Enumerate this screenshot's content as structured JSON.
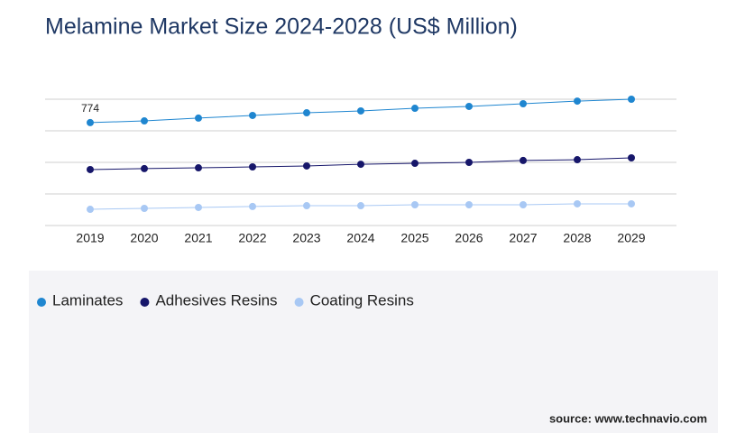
{
  "chart_data": {
    "type": "line",
    "title": "Melamine Market Size 2024-2028 (US$ Million)",
    "x": [
      2019,
      2020,
      2021,
      2022,
      2023,
      2024,
      2025,
      2026,
      2027,
      2028,
      2029
    ],
    "series": [
      {
        "name": "Laminates",
        "color": "#1f86d0",
        "values": [
          774,
          787,
          808,
          828,
          848,
          862,
          882,
          896,
          916,
          936,
          950
        ]
      },
      {
        "name": "Adhesives Resins",
        "color": "#16166a",
        "values": [
          421,
          428,
          434,
          441,
          448,
          461,
          468,
          475,
          489,
          495,
          509
        ]
      },
      {
        "name": "Coating Resins",
        "color": "#a8c8f4",
        "values": [
          122,
          129,
          136,
          143,
          149,
          149,
          156,
          156,
          156,
          163,
          163
        ]
      }
    ],
    "ylim": [
      0,
      950
    ],
    "yticks": [
      0,
      237.5,
      475,
      712.5,
      950
    ],
    "grid": true,
    "source": "source: www.technavio.com"
  }
}
